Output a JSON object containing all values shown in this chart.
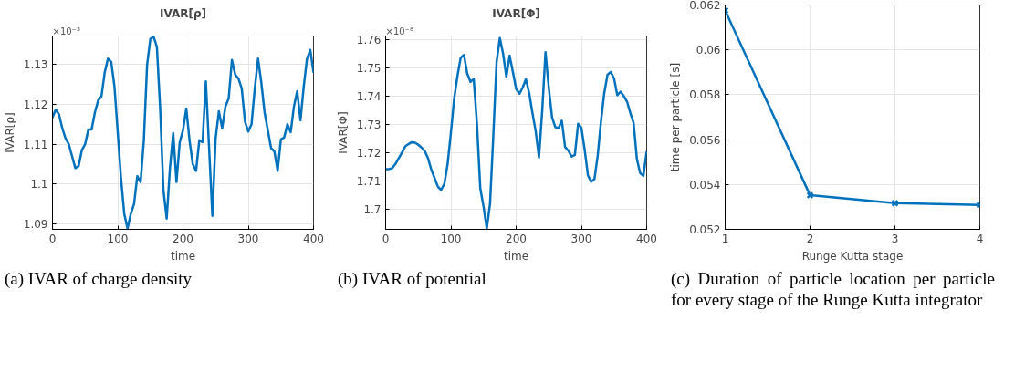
{
  "chart_data": [
    {
      "type": "line",
      "title": "IVAR[ρ]",
      "xlabel": "time",
      "ylabel": "IVAR[ρ]",
      "annotations": [
        "×10⁻³",
        "(a) IVAR of charge density"
      ],
      "grid": true,
      "marker": "none",
      "line_style": "solid",
      "xlim": [
        0,
        400
      ],
      "xticks": [
        0,
        100,
        200,
        300,
        400
      ],
      "ylim": [
        1.0886,
        1.1372
      ],
      "yticks": [
        1.09,
        1.1,
        1.11,
        1.12,
        1.13
      ],
      "x": [
        0,
        5,
        10,
        15,
        20,
        25,
        30,
        35,
        40,
        45,
        50,
        55,
        60,
        65,
        70,
        75,
        80,
        85,
        90,
        95,
        100,
        105,
        110,
        115,
        120,
        125,
        130,
        135,
        140,
        145,
        150,
        155,
        160,
        165,
        170,
        175,
        180,
        185,
        190,
        195,
        200,
        205,
        210,
        215,
        220,
        225,
        230,
        235,
        240,
        245,
        250,
        255,
        260,
        265,
        270,
        275,
        280,
        285,
        290,
        295,
        300,
        305,
        310,
        315,
        320,
        325,
        330,
        335,
        340,
        345,
        350,
        355,
        360,
        365,
        370,
        375,
        380,
        385,
        390,
        395,
        400
      ],
      "series": [
        {
          "color": "#0072bd",
          "values": [
            1.1167,
            1.1187,
            1.1175,
            1.114,
            1.1115,
            1.11,
            1.107,
            1.104,
            1.1045,
            1.1085,
            1.11,
            1.1137,
            1.1137,
            1.118,
            1.121,
            1.122,
            1.128,
            1.1315,
            1.1307,
            1.1245,
            1.113,
            1.1015,
            1.0925,
            1.0888,
            1.0925,
            1.095,
            1.102,
            1.1005,
            1.111,
            1.13,
            1.1365,
            1.137,
            1.1345,
            1.119,
            1.0985,
            1.0913,
            1.104,
            1.1128,
            1.1005,
            1.1105,
            1.1135,
            1.119,
            1.111,
            1.105,
            1.1033,
            1.111,
            1.1105,
            1.1258,
            1.109,
            1.092,
            1.1115,
            1.1183,
            1.114,
            1.1195,
            1.1215,
            1.1312,
            1.1275,
            1.1265,
            1.124,
            1.1157,
            1.1132,
            1.115,
            1.124,
            1.1315,
            1.1255,
            1.118,
            1.1135,
            1.109,
            1.1082,
            1.1033,
            1.1112,
            1.1117,
            1.115,
            1.113,
            1.1195,
            1.1233,
            1.116,
            1.1245,
            1.1315,
            1.1337,
            1.128
          ]
        }
      ]
    },
    {
      "type": "line",
      "title": "IVAR[Φ]",
      "xlabel": "time",
      "ylabel": "IVAR[Φ]",
      "annotations": [
        "×10⁻⁸",
        "(b) IVAR of potential"
      ],
      "grid": true,
      "marker": "none",
      "line_style": "solid",
      "xlim": [
        0,
        400
      ],
      "xticks": [
        0,
        100,
        200,
        300,
        400
      ],
      "ylim": [
        1.6929,
        1.7612
      ],
      "yticks": [
        1.7,
        1.71,
        1.72,
        1.73,
        1.74,
        1.75,
        1.76
      ],
      "x": [
        0,
        5,
        10,
        15,
        20,
        25,
        30,
        35,
        40,
        45,
        50,
        55,
        60,
        65,
        70,
        75,
        80,
        85,
        90,
        95,
        100,
        105,
        110,
        115,
        120,
        125,
        130,
        135,
        140,
        145,
        150,
        155,
        160,
        165,
        170,
        175,
        180,
        185,
        190,
        195,
        200,
        205,
        210,
        215,
        220,
        225,
        230,
        235,
        240,
        245,
        250,
        255,
        260,
        265,
        270,
        275,
        280,
        285,
        290,
        295,
        300,
        305,
        310,
        315,
        320,
        325,
        330,
        335,
        340,
        345,
        350,
        355,
        360,
        365,
        370,
        375,
        380,
        385,
        390,
        395,
        400
      ],
      "series": [
        {
          "color": "#0072bd",
          "values": [
            1.7142,
            1.7142,
            1.7145,
            1.716,
            1.718,
            1.72,
            1.7222,
            1.723,
            1.7237,
            1.7235,
            1.7228,
            1.7218,
            1.7205,
            1.718,
            1.714,
            1.711,
            1.708,
            1.7068,
            1.709,
            1.716,
            1.727,
            1.739,
            1.747,
            1.7535,
            1.7545,
            1.748,
            1.745,
            1.746,
            1.73,
            1.7075,
            1.701,
            1.6932,
            1.702,
            1.726,
            1.752,
            1.7605,
            1.755,
            1.7468,
            1.7543,
            1.7485,
            1.7425,
            1.7408,
            1.743,
            1.746,
            1.741,
            1.734,
            1.7275,
            1.7183,
            1.735,
            1.7555,
            1.743,
            1.7325,
            1.729,
            1.7287,
            1.7313,
            1.722,
            1.7207,
            1.7186,
            1.7192,
            1.7302,
            1.7288,
            1.721,
            1.712,
            1.7097,
            1.7107,
            1.719,
            1.731,
            1.741,
            1.7475,
            1.7485,
            1.7462,
            1.7403,
            1.7415,
            1.74,
            1.738,
            1.734,
            1.7305,
            1.7178,
            1.7128,
            1.7118,
            1.7205
          ]
        }
      ]
    },
    {
      "type": "line",
      "xlabel": "Runge Kutta stage",
      "ylabel": "time per particle [s]",
      "annotations": [
        "(c) Duration of particle location per particle for every stage of the Runge Kutta integrator"
      ],
      "grid": true,
      "marker": "cross",
      "line_style": "solid",
      "xlim": [
        1,
        4
      ],
      "xticks": [
        1,
        2,
        3,
        4
      ],
      "ylim": [
        0.052,
        0.062
      ],
      "yticks": [
        0.052,
        0.054,
        0.056,
        0.058,
        0.06,
        0.062
      ],
      "x": [
        1,
        2,
        3,
        4
      ],
      "series": [
        {
          "color": "#0072bd",
          "values": [
            0.06176,
            0.05352,
            0.05317,
            0.05309
          ]
        }
      ]
    }
  ]
}
